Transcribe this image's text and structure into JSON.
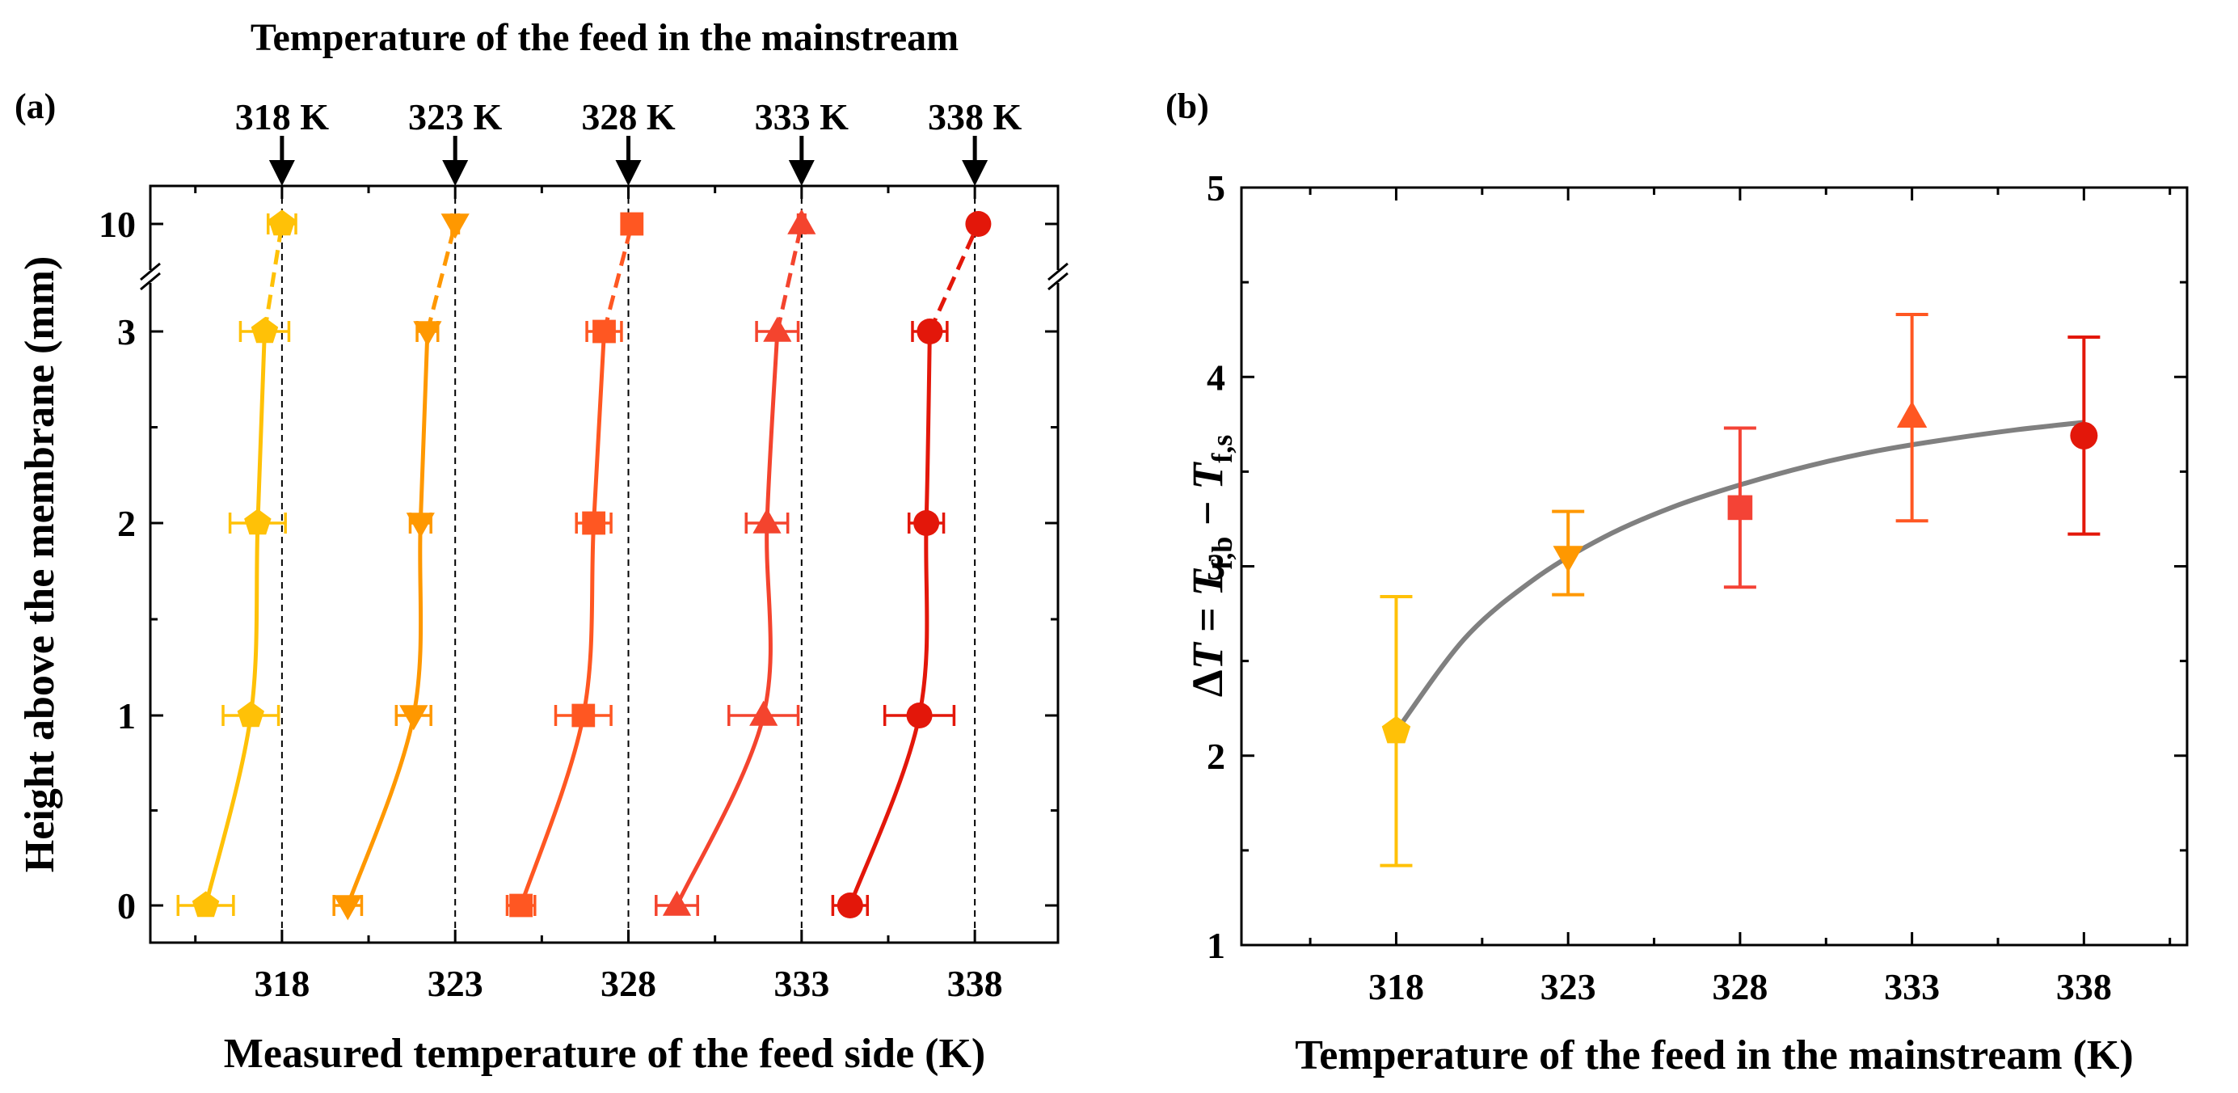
{
  "chart_data": [
    {
      "panel_label": "(a)",
      "type": "scatter",
      "title_top": "Temperature of the feed in the mainstream",
      "xlabel": "Measured temperature of the feed side (K)",
      "ylabel": "Height above the membrane (mm)",
      "xlim": [
        314.2,
        340.4
      ],
      "xticks": [
        "318",
        "323",
        "328",
        "333",
        "338"
      ],
      "yticks": [
        "0",
        "1",
        "2",
        "3",
        "10"
      ],
      "y_break_between": [
        3,
        10
      ],
      "markers": [
        {
          "label": "318 K",
          "value": 318
        },
        {
          "label": "323 K",
          "value": 323
        },
        {
          "label": "328 K",
          "value": 328
        },
        {
          "label": "333 K",
          "value": 333
        },
        {
          "label": "338 K",
          "value": 338
        }
      ],
      "series": [
        {
          "name": "318 K",
          "color": "#FFC107",
          "marker": "pentagon",
          "points": [
            {
              "height": 0,
              "T": 315.8,
              "err": 0.8
            },
            {
              "height": 1,
              "T": 317.1,
              "err": 0.8
            },
            {
              "height": 2,
              "T": 317.3,
              "err": 0.8
            },
            {
              "height": 3,
              "T": 317.5,
              "err": 0.7
            },
            {
              "height": 10,
              "T": 318.0,
              "err": 0.4
            }
          ]
        },
        {
          "name": "323 K",
          "color": "#FF9800",
          "marker": "triangle-down",
          "points": [
            {
              "height": 0,
              "T": 319.9,
              "err": 0.4
            },
            {
              "height": 1,
              "T": 321.8,
              "err": 0.5
            },
            {
              "height": 2,
              "T": 322.0,
              "err": 0.3
            },
            {
              "height": 3,
              "T": 322.2,
              "err": 0.3
            },
            {
              "height": 10,
              "T": 323.0,
              "err": 0.1
            }
          ]
        },
        {
          "name": "328 K",
          "color": "#FF5722",
          "marker": "square",
          "points": [
            {
              "height": 0,
              "T": 324.9,
              "err": 0.4
            },
            {
              "height": 1,
              "T": 326.7,
              "err": 0.8
            },
            {
              "height": 2,
              "T": 327.0,
              "err": 0.5
            },
            {
              "height": 3,
              "T": 327.3,
              "err": 0.5
            },
            {
              "height": 10,
              "T": 328.1,
              "err": 0.2
            }
          ]
        },
        {
          "name": "333 K",
          "color": "#F4442E",
          "marker": "triangle-up",
          "points": [
            {
              "height": 0,
              "T": 329.4,
              "err": 0.6
            },
            {
              "height": 1,
              "T": 331.9,
              "err": 1.0
            },
            {
              "height": 2,
              "T": 332.0,
              "err": 0.6
            },
            {
              "height": 3,
              "T": 332.3,
              "err": 0.6
            },
            {
              "height": 10,
              "T": 333.0,
              "err": 0.1
            }
          ]
        },
        {
          "name": "338 K",
          "color": "#E3170A",
          "marker": "circle",
          "points": [
            {
              "height": 0,
              "T": 334.4,
              "err": 0.5
            },
            {
              "height": 1,
              "T": 336.4,
              "err": 1.0
            },
            {
              "height": 2,
              "T": 336.6,
              "err": 0.5
            },
            {
              "height": 3,
              "T": 336.7,
              "err": 0.5
            },
            {
              "height": 10,
              "T": 338.1,
              "err": 0.1
            }
          ]
        }
      ]
    },
    {
      "panel_label": "(b)",
      "type": "scatter",
      "xlabel": "Temperature of the feed in the mainstream (K)",
      "ylabel_prefix": "Δ",
      "ylabel_var": "T",
      "ylabel_eq": " = ",
      "ylabel_t1": "T",
      "ylabel_sub1": "f,b",
      "ylabel_minus": " − ",
      "ylabel_t2": "T",
      "ylabel_sub2": "f,s",
      "xlim": [
        313.5,
        341.0
      ],
      "ylim": [
        1,
        5
      ],
      "xticks": [
        "318",
        "323",
        "328",
        "333",
        "338"
      ],
      "yticks": [
        "1",
        "2",
        "3",
        "4",
        "5"
      ],
      "fit_color": "#808080",
      "fit_curve": [
        {
          "x": 318,
          "y": 2.13
        },
        {
          "x": 320,
          "y": 2.62
        },
        {
          "x": 322,
          "y": 2.93
        },
        {
          "x": 324,
          "y": 3.15
        },
        {
          "x": 326,
          "y": 3.31
        },
        {
          "x": 328,
          "y": 3.43
        },
        {
          "x": 330,
          "y": 3.53
        },
        {
          "x": 332,
          "y": 3.61
        },
        {
          "x": 334,
          "y": 3.67
        },
        {
          "x": 336,
          "y": 3.72
        },
        {
          "x": 338,
          "y": 3.76
        }
      ],
      "points": [
        {
          "x": 318,
          "y": 2.13,
          "lo": 1.42,
          "hi": 2.84,
          "color": "#FFC107",
          "marker": "pentagon"
        },
        {
          "x": 323,
          "y": 3.05,
          "lo": 2.85,
          "hi": 3.29,
          "color": "#FF9800",
          "marker": "triangle-down"
        },
        {
          "x": 328,
          "y": 3.31,
          "lo": 2.89,
          "hi": 3.73,
          "color": "#F44336",
          "marker": "square"
        },
        {
          "x": 333,
          "y": 3.79,
          "lo": 3.24,
          "hi": 4.33,
          "color": "#FF5722",
          "marker": "triangle-up"
        },
        {
          "x": 338,
          "y": 3.69,
          "lo": 3.17,
          "hi": 4.21,
          "color": "#E3170A",
          "marker": "circle"
        }
      ]
    }
  ]
}
